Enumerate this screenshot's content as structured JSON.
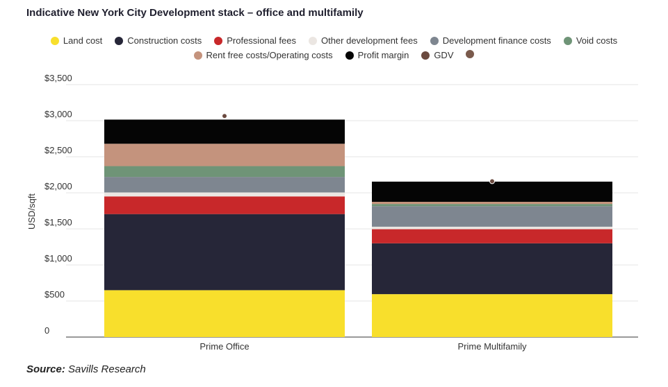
{
  "title": "Indicative New York City Development stack – office and multifamily",
  "source_label": "Source:",
  "source_text": "Savills Research",
  "chart_data": {
    "type": "bar",
    "stacked": true,
    "categories": [
      "Prime Office",
      "Prime Multifamily"
    ],
    "ylabel": "USD/sqft",
    "ylim": [
      0,
      3500
    ],
    "yticks": [
      0,
      500,
      1000,
      1500,
      2000,
      2500,
      3000,
      3500
    ],
    "ytick_labels": [
      "0",
      "$500",
      "$1,000",
      "$1,500",
      "$2,000",
      "$2,500",
      "$3,000",
      "$3,500"
    ],
    "grid": true,
    "legend_placement": "top",
    "series": [
      {
        "name": "Land cost",
        "color": "#f8df2c",
        "values": [
          650,
          595
        ]
      },
      {
        "name": "Construction costs",
        "color": "#262638",
        "values": [
          1055,
          705
        ]
      },
      {
        "name": "Professional fees",
        "color": "#c8282a",
        "values": [
          245,
          195
        ]
      },
      {
        "name": "Other development fees",
        "color": "#ebe6e2",
        "values": [
          55,
          35
        ]
      },
      {
        "name": "Development finance costs",
        "color": "#7e8690",
        "values": [
          215,
          285
        ]
      },
      {
        "name": "Void costs",
        "color": "#6f9477",
        "values": [
          150,
          30
        ]
      },
      {
        "name": "Rent free costs/Operating costs",
        "color": "#c4937d",
        "values": [
          310,
          30
        ]
      },
      {
        "name": "Profit margin",
        "color": "#050505",
        "values": [
          335,
          280
        ]
      }
    ],
    "gdv": {
      "name": "GDV",
      "color": "#6b4a3f",
      "values": [
        3065,
        2160
      ]
    },
    "extra_legend_color": "#7a5a4c"
  }
}
